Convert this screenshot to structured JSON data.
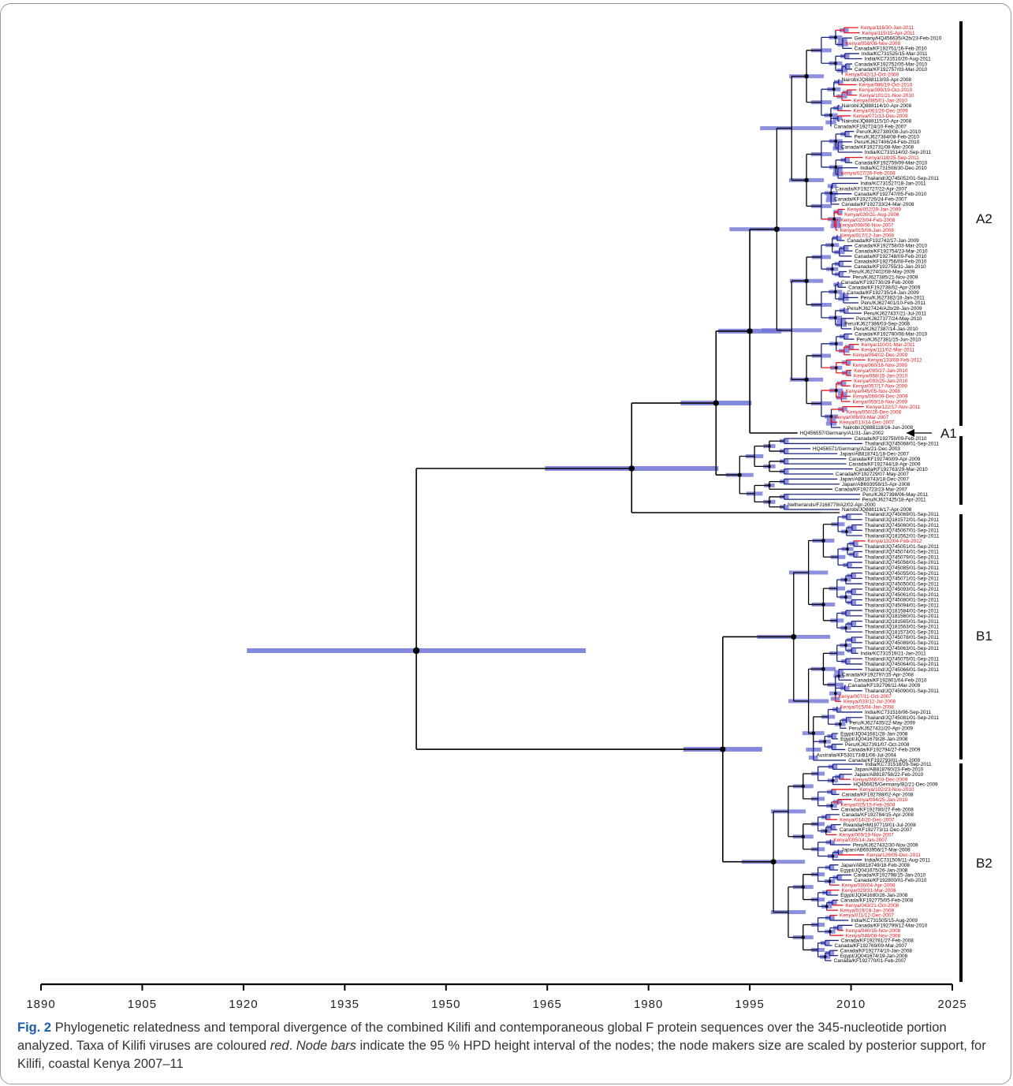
{
  "figure": {
    "label": "Fig. 2",
    "caption_part1": "Phylogenetic relatedness and temporal divergence of the combined Kilifi and contemporaneous global F protein sequences over the 345-nucleotide portion analyzed. Taxa of Kilifi viruses are coloured ",
    "caption_italic1": "red",
    "caption_part2": ". ",
    "caption_italic2": "Node bars",
    "caption_part3": " indicate the 95 % HPD height interval of the nodes; the node makers size are scaled by posterior support, for Kilifi, coastal Kenya 2007–11"
  },
  "axis": {
    "min": 1890,
    "max": 2025,
    "ticks": [
      "1890",
      "1905",
      "1920",
      "1935",
      "1950",
      "1965",
      "1980",
      "1995",
      "2010",
      "2025"
    ]
  },
  "colors": {
    "kilifi": "#e8141b",
    "global": "#000000",
    "hpd_bar": "#6f74d6",
    "branch_blue": "#1a237e"
  },
  "clades": [
    {
      "label": "A2",
      "group": "A2"
    },
    {
      "label": "A1",
      "group": "A1"
    },
    {
      "label": "",
      "group": "Aother"
    },
    {
      "label": "B1",
      "group": "B1"
    },
    {
      "label": "B2",
      "group": "B2"
    }
  ],
  "tips": {
    "A2": [
      "Kenya/116/30-Jan-2011",
      "Kenya/115/15-Apr-2011",
      "Germany/HQ456635/A2b/23-Feb-2010",
      "Kenya/058/08-Nov-2008",
      "Canada/KF192751/16-Feb-2010",
      "India/KC731525/15-Mar-2011",
      "India/KC731510/20-Aug-2011",
      "Canada/KF192752/05-Mar-2010",
      "Canada/KF192757/03-Mar-2010",
      "Kenya/042/13-Oct-2008",
      "Nairobi/JQ888113/03-Apr-2008",
      "Kenya/086/19-Oct-2010",
      "Kenya/099/19-Oct-2010",
      "Kenya/101/21-Nov-2010",
      "Kenya/085/01-Jan-2010",
      "Nairobi/JQ888114/10-Apr-2008",
      "Kenya/061/26-Dec-2009",
      "Kenya/071/13-Dec-2009",
      "Nairobi/JQ888115/10-Apr-2008",
      "Canada/KF192724/10-Feb-2007",
      "Peru/KJ627380/08-Jun-2010",
      "Peru/KJ627384/08-Feb-2010",
      "Peru/KJ627406/24-Feb-2010",
      "Canada/KF192731/08-Mar-2008",
      "India/KC731514/02-Sep-2011",
      "Kenya/118/25-Sep-2011",
      "Canada/KF192759/09-Mar-2010",
      "India/KC731508/30-Dec-2010",
      "Kenya/027/26-Feb-2008",
      "Thailand/JQ745052/01-Sep-2011",
      "India/KC731527/18-Jan-2011",
      "Canada/KF192727/22-Apr-2007",
      "Canada/KF192747/05-Feb-2010",
      "Canada/KF192726/24-Feb-2007",
      "Canada/KF192733/24-Mar-2008",
      "Kenya/052/29-Jan-2009",
      "Kenya/039/31-Aug-2008",
      "Kenya/023/04-Feb-2008",
      "Kenya/008/06-Nov-2007",
      "Kenya/015/08-Jan-2008",
      "Kenya/017/12-Jan-2008",
      "Canada/KF192742/17-Jan-2009",
      "Canada/KF192758/03-Mar-2010",
      "Canada/KF192754/23-Mar-2010",
      "Canada/KF192748/09-Feb-2010",
      "Canada/KF192756/08-Feb-2010",
      "Canada/KF192755/31-Jan-2010",
      "Peru/KJ627402/08-May-2009",
      "Peru/KJ627385/21-Nov-2009",
      "Canada/KF192730/29-Feb-2008",
      "Canada/KF192738/02-Apr-2009",
      "Canada/KF192735/14-Jan-2009",
      "Peru/KJ627382/18-Jan-2011",
      "Peru/KJ627401/10-Feb-2011",
      "Peru/KJ627424/A2b/28-Jan-2009",
      "Peru/KJ627437/21-Jul-2011",
      "Peru/KJ627377/24-May-2010",
      "Peru/KJ627386/03-Sep-2008",
      "Peru/KJ627387/14-Jan-2010",
      "Canada/KF192760/08-Mar-2010",
      "Peru/KJ627381/15-Jun-2010",
      "Kenya/110/01-Mar-2011",
      "Kenya/111/02-Mar-2011",
      "Kenya/064/02-Dec-2009",
      "Kenya/133/08-Feb-2012",
      "Kenya/060/16-Nov-2009",
      "Kenya/095/27-Jan-2010",
      "Kenya/088/15-Jan-2010",
      "Kenya/093/25-Jan-2010",
      "Kenya/057/17-Nov-2009",
      "Kenya/045/05-Nov-2008",
      "Kenya/069/09-Dec-2009",
      "Kenya/059/18-Nov-2009",
      "Kenya/122/17-Nov-2011",
      "Kenya/050/26-Dec-2008",
      "Kenya/006/03-Mar-2007",
      "Kenya/013/14-Dec-2007",
      "Nairobi/JQ888118/16-Jun-2008"
    ],
    "A1": [
      "HQ456557/Germany/A1/31-Jan-2002"
    ],
    "Aother": [
      "Canada/KF192750/09-Feb-2010",
      "Thailand/JQ745068/01-Sep-2011",
      "HQ456571/Germany/A2a/21-Dec-2003",
      "Japan/AB818741/18-Dec-2007",
      "Canada/KF192740/09-Apr-2009",
      "Canada/KF192744/18-Apr-2009",
      "Canada/KF192763/29-Mar-2010",
      "Canada/KF192729/07-May-2007",
      "Japan/AB818743/18-Dec-2007",
      "Japan/AB693958/15-Apr-2008",
      "Canada/KF192723/23-Mar-2007",
      "Peru/KJ627398/06-May-2011",
      "Peru/KJ627425/18-Apr-2011",
      "Netherlands/FJ168779/A2/02-Apr-2000",
      "Nairobi/JQ888116/17-Apr-2008"
    ],
    "B1": [
      "Thailand/JQ745069/01-Sep-2011",
      "Thailand/JQ181572/01-Sep-2011",
      "Thailand/JQ745060/01-Sep-2011",
      "Thailand/JQ745067/01-Sep-2011",
      "Thailand/JQ181562/01-Sep-2011",
      "Kenya/132/04-Feb-2012",
      "Thailand/JQ745051/01-Sep-2011",
      "Thailand/JQ745074/01-Sep-2011",
      "Thailand/JQ745079/01-Sep-2011",
      "Thailand/JQ745056/01-Sep-2011",
      "Thailand/JQ745085/01-Sep-2011",
      "Thailand/JQ745055/01-Sep-2011",
      "Thailand/JQ745071/01-Sep-2011",
      "Thailand/JQ745050/01-Sep-2011",
      "Thailand/JQ745093/01-Sep-2011",
      "Thailand/JQ745061/01-Sep-2011",
      "Thailand/JQ745080/01-Sep-2011",
      "Thailand/JQ745094/01-Sep-2011",
      "Thailand/JQ181584/01-Sep-2011",
      "Thailand/JQ181560/01-Sep-2011",
      "Thailand/JQ181565/01-Sep-2011",
      "Thailand/JQ181563/01-Sep-2011",
      "Thailand/JQ181573/01-Sep-2011",
      "Thailand/JQ745078/01-Sep-2011",
      "Thailand/JQ745089/01-Sep-2011",
      "Thailand/JQ745063/01-Sep-2011",
      "India/KC731519/21-Jan-2011",
      "Thailand/JQ745075/01-Sep-2011",
      "Thailand/JQ745064/01-Sep-2011",
      "Thailand/JQ745066/01-Sep-2011",
      "Canada/KF192797/15-Apr-2008",
      "Canada/KF192801/04-Feb-2010",
      "Canada/KF192796/11-Mar-2009",
      "Thailand/JQ745090/01-Sep-2011",
      "Kenya/007/11-Oct-2007",
      "Kenya/033/12-Jul-2008",
      "Kenya/015/04-Jan-2008",
      "India/KC731516/06-Sep-2011",
      "Thailand/JQ745081/01-Sep-2011",
      "Peru/KJ627435/22-May-2009",
      "Peru/KJ627431/20-Apr-2009",
      "Egypt/JQ041681/28-Jan-2008",
      "Egypt/JQ041679/28-Jan-2008",
      "Peru/KJ627391/07-Oct-2008",
      "Canada/KF192794/27-Feb-2009",
      "Australia/KF530173/B1/06-Jul-2004",
      "Canada/KF192793/01-Apr-2009"
    ],
    "B2": [
      "India/KC731518/29-Sep-2011",
      "Japan/AB818760/23-Feb-2010",
      "Japan/AB818758/22-Feb-2010",
      "Kenya/066/03-Dec-2009",
      "HQ456625/Germany/B2/21-Dec-2009",
      "Kenya/102/23-Nov-2010",
      "Canada/KF192788/02-Apr-2008",
      "Kenya/094/25-Jan-2010",
      "Kenya/025/15-Feb-2008",
      "Canada/KF192780/27-Feb-2008",
      "Canada/KF192784/15-Apr-2008",
      "Kenya/014/20-Dec-2007",
      "Rwanda/HM197719/01-Jul-2008",
      "Canada/KF192773/11-Dec-2007",
      "Kenya/009/19-Nov-2007",
      "Kenya/005/14-Jan-2007",
      "Peru/KJ627432/30-Nov-2009",
      "Japan/AB693956/17-Mar-2008",
      "Kenya/126/05-Dec-2011",
      "India/KC731509/11-Aug-2011",
      "Japan/AB818749/18-Feb-2008",
      "Egypt/JQ041675/26-Jan-2008",
      "Canada/KF192798/15-Jan-2010",
      "Canada/KF192800/01-Feb-2010",
      "Kenya/030/04-Apr-2008",
      "Kenya/029/31-Mar-2008",
      "Egypt/JQ041680/28-Jan-2008",
      "Canada/KF192775/05-Feb-2008",
      "Kenya/043/21-Oct-2008",
      "Kenya/019/18-Jan-2008",
      "Kenya/011/12-Dec-2007",
      "India/KC731505/15-Aug-2009",
      "Canada/KF192799/12-Mar-2010",
      "Kenya/040/15-Nov-2008",
      "Kenya/046/08-Nov-2008",
      "Canada/KF192781/27-Feb-2008",
      "Canada/KF192769/09-Mar-2007",
      "Canada/KF192774/10-Jan-2008",
      "Egypt/JQ041674/19-Jan-2008",
      "Canada/KF192770/01-Feb-2007"
    ]
  }
}
